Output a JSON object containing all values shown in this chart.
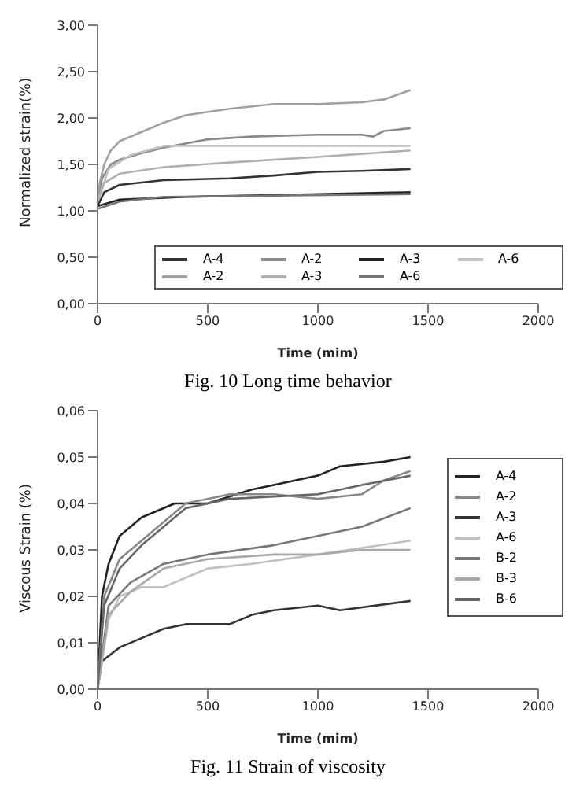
{
  "chart_data": [
    {
      "type": "line",
      "title": "Fig. 10 Long time behavior",
      "xlabel": "Time (mim)",
      "ylabel": "Normalized strain(%)",
      "xlim": [
        0,
        2000
      ],
      "xticks": [
        0,
        500,
        1000,
        1500,
        2000
      ],
      "ylim": [
        0,
        3
      ],
      "yticks": [
        {
          "value": 0,
          "label": "0,00"
        },
        {
          "value": 0.5,
          "label": "0,50"
        },
        {
          "value": 1,
          "label": "1,00"
        },
        {
          "value": 1.5,
          "label": "1,50"
        },
        {
          "value": 2,
          "label": "2,00"
        },
        {
          "value": 2.5,
          "label": "2,50"
        },
        {
          "value": 3,
          "label": "3,00"
        }
      ],
      "grid": false,
      "legend": "bottom",
      "marker": "none",
      "line_style": "solid",
      "series": [
        {
          "name": "A-4",
          "color": "#333333",
          "x": [
            0,
            30,
            100,
            300,
            600,
            800,
            1000,
            1200,
            1420
          ],
          "values": [
            1.05,
            1.2,
            1.28,
            1.33,
            1.35,
            1.38,
            1.42,
            1.43,
            1.45
          ]
        },
        {
          "name": "A-2",
          "color": "#8a8a8a",
          "x": [
            0,
            20,
            60,
            100,
            200,
            300,
            500,
            700,
            1000,
            1200,
            1250,
            1300,
            1420
          ],
          "values": [
            1.1,
            1.35,
            1.5,
            1.55,
            1.62,
            1.68,
            1.77,
            1.8,
            1.82,
            1.82,
            1.8,
            1.86,
            1.89
          ]
        },
        {
          "name": "A-3",
          "color": "#222222",
          "x": [
            0,
            100,
            400,
            800,
            1420
          ],
          "values": [
            1.05,
            1.12,
            1.15,
            1.17,
            1.2
          ]
        },
        {
          "name": "A-6",
          "color": "#c0c0c0",
          "x": [
            0,
            50,
            150,
            300,
            1420
          ],
          "values": [
            1.1,
            1.45,
            1.6,
            1.7,
            1.7
          ]
        },
        {
          "name": "A-2",
          "color": "#a0a0a0",
          "x": [
            0,
            10,
            30,
            60,
            100,
            200,
            300,
            400,
            600,
            800,
            1000,
            1200,
            1300,
            1420
          ],
          "values": [
            1.1,
            1.3,
            1.5,
            1.65,
            1.75,
            1.85,
            1.95,
            2.03,
            2.1,
            2.15,
            2.15,
            2.17,
            2.2,
            2.3
          ]
        },
        {
          "name": "A-3",
          "color": "#b0b0b0",
          "x": [
            0,
            30,
            100,
            300,
            600,
            1000,
            1420
          ],
          "values": [
            1.1,
            1.3,
            1.4,
            1.47,
            1.52,
            1.58,
            1.65
          ]
        },
        {
          "name": "A-6",
          "color": "#777777",
          "x": [
            0,
            100,
            300,
            1420
          ],
          "values": [
            1.02,
            1.1,
            1.15,
            1.18
          ]
        }
      ]
    },
    {
      "type": "line",
      "title": "Fig. 11 Strain of viscosity",
      "xlabel": "Time (mim)",
      "ylabel": "Viscous Strain (%)",
      "xlim": [
        0,
        2000
      ],
      "xticks": [
        0,
        500,
        1000,
        1500,
        2000
      ],
      "ylim": [
        0,
        0.06
      ],
      "yticks": [
        {
          "value": 0,
          "label": "0,00"
        },
        {
          "value": 0.01,
          "label": "0,01"
        },
        {
          "value": 0.02,
          "label": "0,02"
        },
        {
          "value": 0.03,
          "label": "0,03"
        },
        {
          "value": 0.04,
          "label": "0,04"
        },
        {
          "value": 0.05,
          "label": "0,05"
        },
        {
          "value": 0.06,
          "label": "0,06"
        }
      ],
      "grid": false,
      "legend": "right",
      "marker": "none",
      "line_style": "solid",
      "series": [
        {
          "name": "A-4",
          "color": "#222222",
          "x": [
            0,
            20,
            50,
            100,
            200,
            350,
            500,
            700,
            800,
            1000,
            1100,
            1300,
            1420
          ],
          "values": [
            0,
            0.02,
            0.027,
            0.033,
            0.037,
            0.04,
            0.04,
            0.043,
            0.044,
            0.046,
            0.048,
            0.049,
            0.05
          ]
        },
        {
          "name": "A-2",
          "color": "#888888",
          "x": [
            0,
            30,
            100,
            200,
            300,
            400,
            600,
            800,
            1000,
            1200,
            1300,
            1420
          ],
          "values": [
            0,
            0.02,
            0.028,
            0.032,
            0.036,
            0.04,
            0.042,
            0.042,
            0.041,
            0.042,
            0.045,
            0.047
          ]
        },
        {
          "name": "A-3",
          "color": "#333333",
          "x": [
            0,
            20,
            100,
            200,
            300,
            400,
            600,
            700,
            800,
            1000,
            1100,
            1420
          ],
          "values": [
            0,
            0.006,
            0.009,
            0.011,
            0.013,
            0.014,
            0.014,
            0.016,
            0.017,
            0.018,
            0.017,
            0.019
          ]
        },
        {
          "name": "A-6",
          "color": "#c0c0c0",
          "x": [
            0,
            50,
            100,
            200,
            300,
            400,
            500,
            700,
            1000,
            1420
          ],
          "values": [
            0,
            0.015,
            0.02,
            0.022,
            0.022,
            0.024,
            0.026,
            0.027,
            0.029,
            0.032
          ]
        },
        {
          "name": "B-2",
          "color": "#777777",
          "x": [
            0,
            50,
            150,
            300,
            500,
            800,
            1000,
            1200,
            1420
          ],
          "values": [
            0,
            0.018,
            0.023,
            0.027,
            0.029,
            0.031,
            0.033,
            0.035,
            0.039
          ]
        },
        {
          "name": "B-3",
          "color": "#a8a8a8",
          "x": [
            0,
            50,
            150,
            300,
            500,
            800,
            1000,
            1200,
            1420
          ],
          "values": [
            0,
            0.016,
            0.021,
            0.026,
            0.028,
            0.029,
            0.029,
            0.03,
            0.03
          ]
        },
        {
          "name": "B-6",
          "color": "#666666",
          "x": [
            0,
            30,
            100,
            200,
            300,
            400,
            600,
            1000,
            1200,
            1420
          ],
          "values": [
            0,
            0.018,
            0.026,
            0.031,
            0.035,
            0.039,
            0.041,
            0.042,
            0.044,
            0.046
          ]
        }
      ]
    }
  ]
}
